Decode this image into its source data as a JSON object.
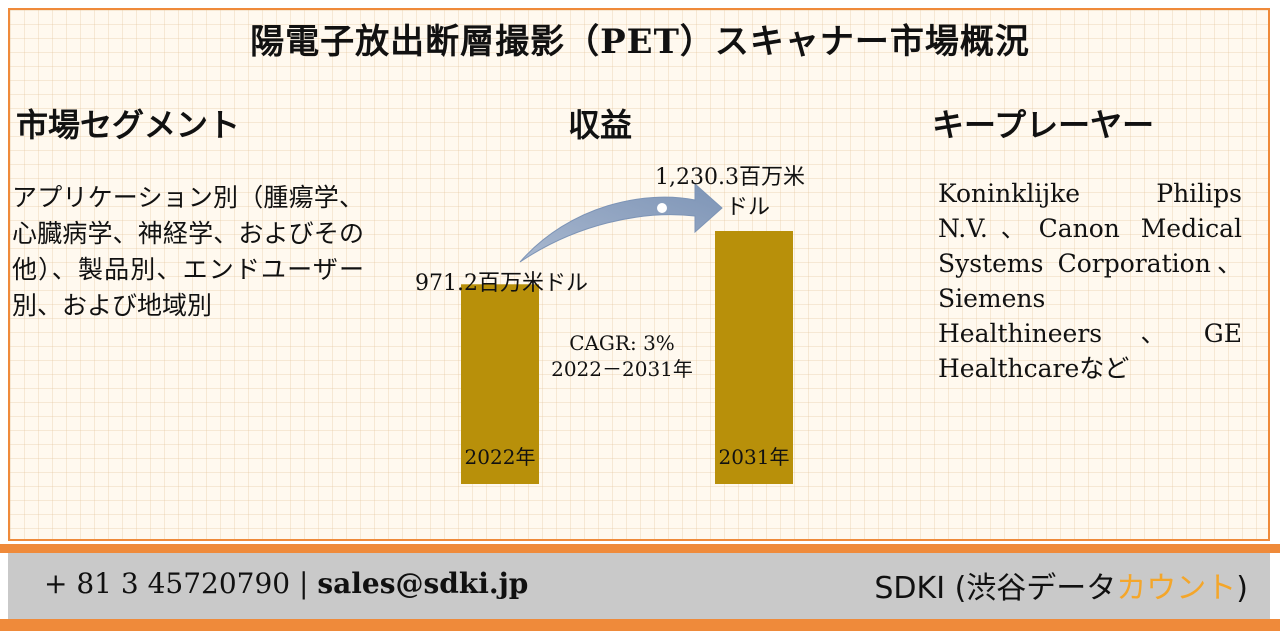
{
  "title": "陽電子放出断層撮影（PET）スキャナー市場概況",
  "segment": {
    "heading": "市場セグメント",
    "text": "アプリケーション別（腫瘍学、心臓病学、神経学、およびその他）、製品別、エンドユーザー別、および地域別"
  },
  "revenue": {
    "heading": "収益"
  },
  "players": {
    "heading": "キープレーヤー",
    "text": "Koninklijke Philips N.V.、Canon Medical Systems Corporation、Siemens Healthineers、GE Healthcareなど"
  },
  "chart_data": {
    "type": "bar",
    "categories": [
      "2022年",
      "2031年"
    ],
    "values": [
      971.2,
      1230.3
    ],
    "value_labels": [
      "971.2百万米ドル",
      "1,230.3百万米ドル"
    ],
    "value_label_2031_line1": "1,230.3百万米",
    "value_label_2031_line2": "ドル",
    "annotation_cagr": "CAGR: 3%",
    "annotation_period": "2022－2031年",
    "bar_color": "#b8900a",
    "title": "",
    "xlabel": "",
    "ylabel": ""
  },
  "footer": {
    "phone": "+ 81 3 45720790",
    "separator": "|",
    "email": "sales@sdki.jp",
    "brand_prefix": "SDKI (渋谷データ",
    "brand_accent": "カウント",
    "brand_suffix": ")"
  },
  "colors": {
    "accent_orange": "#ef8a3a",
    "footer_gray": "#c9c9c9",
    "brand_accent": "#f4a62a",
    "arrow": "#8aa0bf"
  }
}
